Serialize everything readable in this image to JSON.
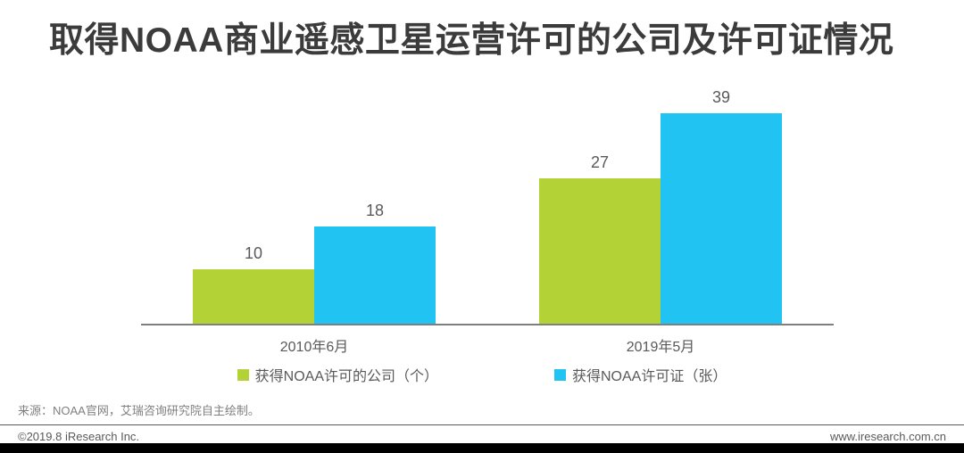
{
  "title": "取得NOAA商业遥感卫星运营许可的公司及许可证情况",
  "chart_data": {
    "type": "bar",
    "categories": [
      "2010年6月",
      "2019年5月"
    ],
    "series": [
      {
        "name": "获得NOAA许可的公司（个）",
        "color": "#b2d235",
        "values": [
          10,
          27
        ]
      },
      {
        "name": "获得NOAA许可证（张）",
        "color": "#21c3f3",
        "values": [
          18,
          39
        ]
      }
    ],
    "title": "取得NOAA商业遥感卫星运营许可的公司及许可证情况",
    "xlabel": "",
    "ylabel": "",
    "ylim": [
      0,
      40
    ],
    "grid": false,
    "legend_position": "bottom",
    "value_labels": true
  },
  "colors": {
    "green_series": "#b2d235",
    "blue_series": "#21c3f3",
    "title_text": "#3b3b3b",
    "label_text": "#595959",
    "axis_line": "#7f7f7f",
    "bottom_bar": "#000000"
  },
  "source_note": "来源：NOAA官网，艾瑞咨询研究院自主绘制。",
  "footer": {
    "left": "©2019.8 iResearch Inc.",
    "right": "www.iresearch.com.cn"
  }
}
